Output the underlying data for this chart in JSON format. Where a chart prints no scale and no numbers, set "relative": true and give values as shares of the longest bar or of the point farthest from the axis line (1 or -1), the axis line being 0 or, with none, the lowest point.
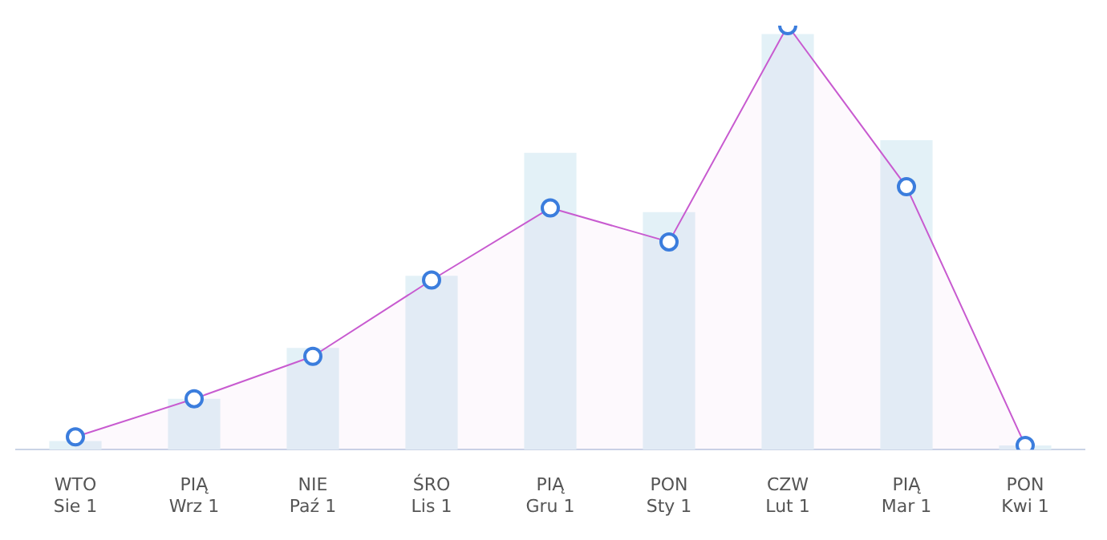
{
  "chart_data": {
    "type": "bar",
    "relative": true,
    "legend": false,
    "marker": "circle",
    "categories": [
      "WTO\nSie 1",
      "PIĄ\nWrz 1",
      "NIE\nPaź 1",
      "ŚRO\nLis 1",
      "PIĄ\nGru 1",
      "PON\nSty 1",
      "CZW\nLut 1",
      "PIĄ\nMar 1",
      "PON\nKwi 1"
    ],
    "series": [
      {
        "color": "#e3f1f7",
        "values": [
          0.02,
          0.12,
          0.24,
          0.41,
          0.7,
          0.56,
          0.98,
          0.73,
          0.01
        ]
      },
      {
        "type": "area",
        "color": "#c85bd0",
        "values": [
          0.03,
          0.12,
          0.22,
          0.4,
          0.57,
          0.49,
          1,
          0.62,
          0.01
        ]
      }
    ]
  }
}
